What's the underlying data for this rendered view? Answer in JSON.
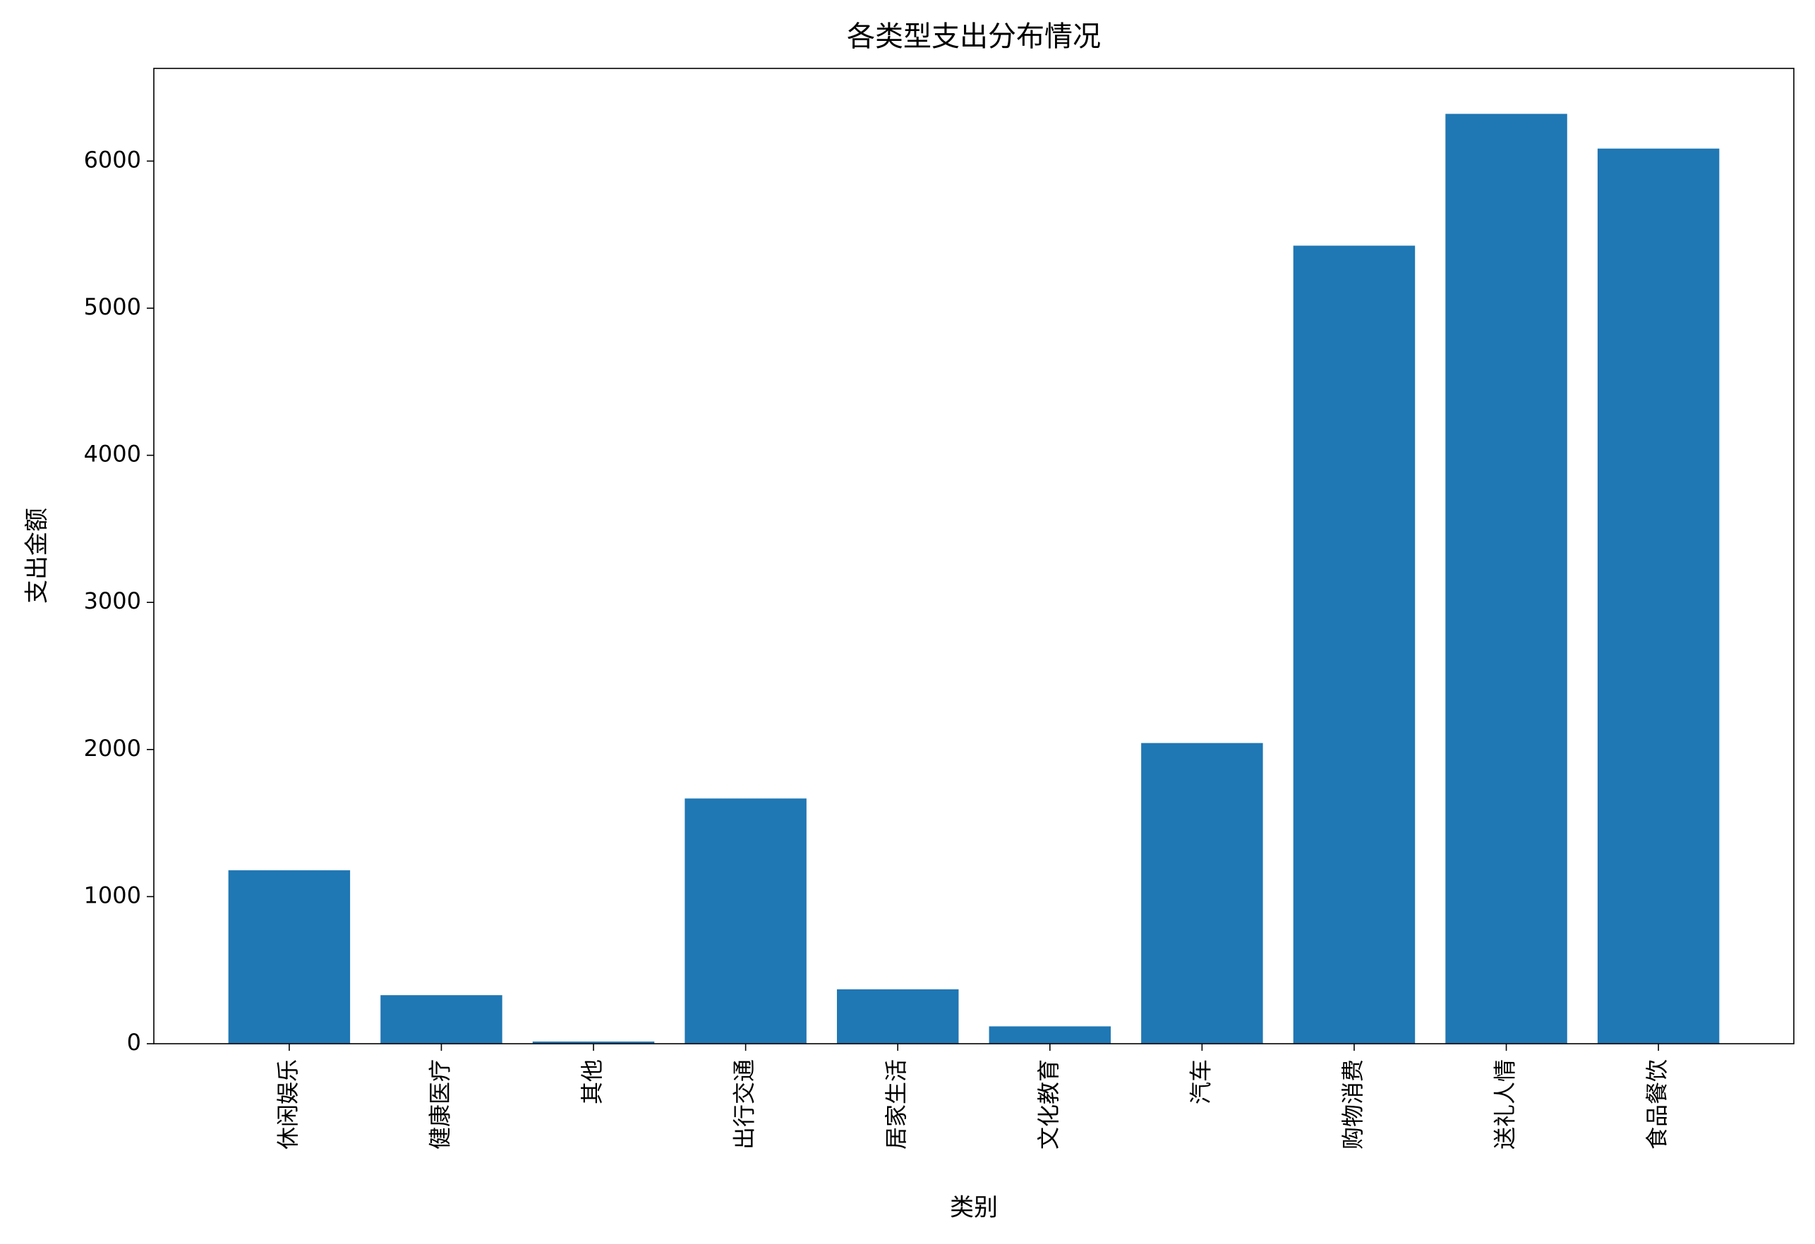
{
  "chart_data": {
    "type": "bar",
    "title": "各类型支出分布情况",
    "x_label": "类别",
    "y_label": "支出金额",
    "categories": [
      "休闲娱乐",
      "健康医疗",
      "其他",
      "出行交通",
      "居家生活",
      "文化教育",
      "汽车",
      "购物消费",
      "送礼人情",
      "食品餐饮"
    ],
    "values": [
      1179,
      330,
      15,
      1667,
      370,
      118,
      2044,
      5425,
      6321,
      6085
    ],
    "color": "#1f77b4",
    "ylim": [
      0,
      6630
    ],
    "yticks": [
      0,
      1000,
      2000,
      3000,
      4000,
      5000,
      6000
    ],
    "grid": false
  }
}
